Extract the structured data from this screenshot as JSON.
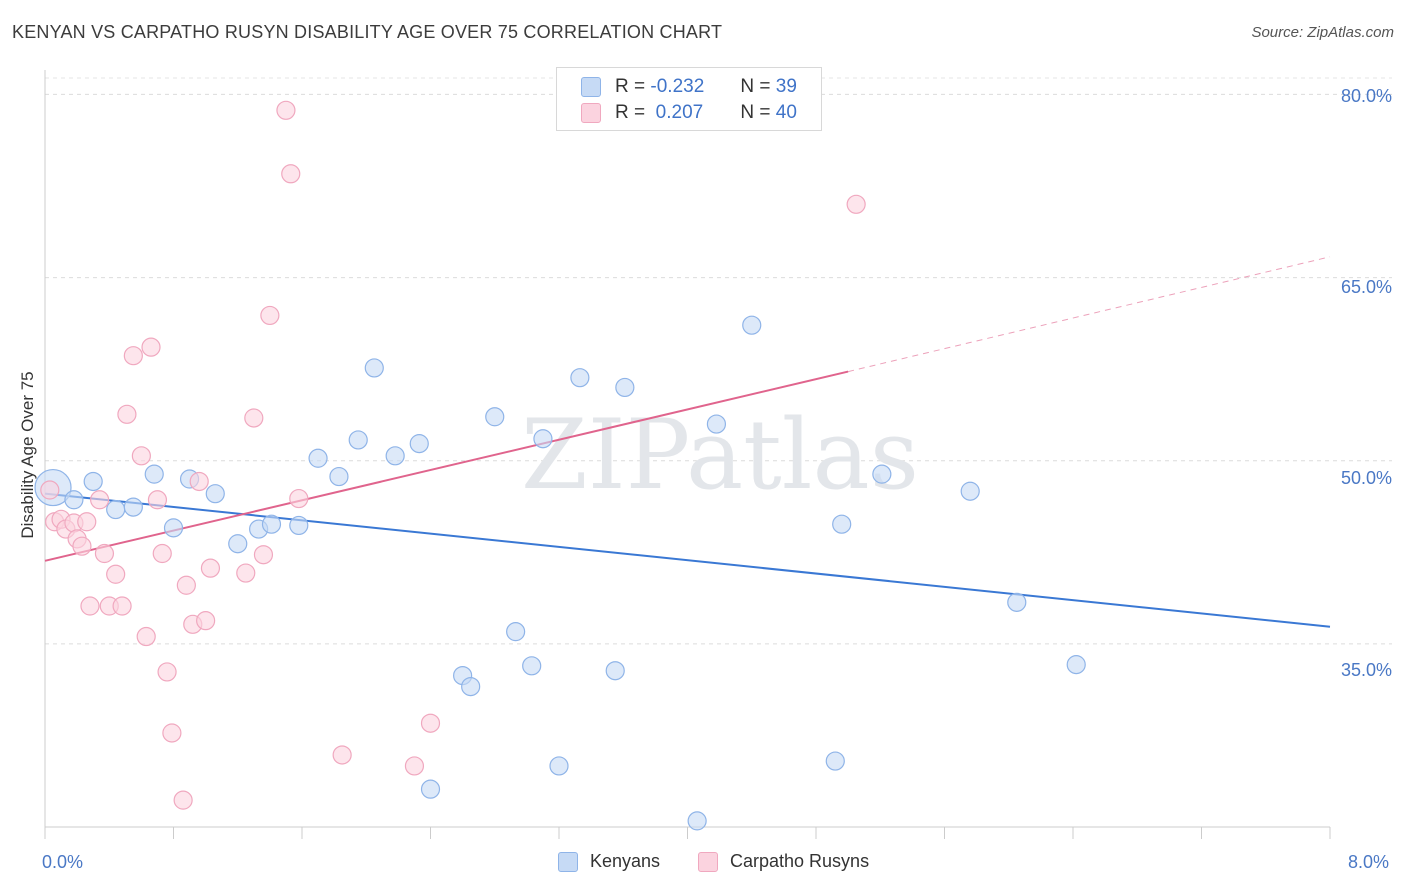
{
  "chart_data": {
    "type": "scatter",
    "title": "KENYAN VS CARPATHO RUSYN DISABILITY AGE OVER 75 CORRELATION CHART",
    "source": "Source: ZipAtlas.com",
    "xlabel": "",
    "ylabel": "Disability Age Over 75",
    "xlim": [
      0.0,
      8.0
    ],
    "ylim": [
      20.0,
      82.0
    ],
    "x_tick_labels": [
      "0.0%",
      "8.0%"
    ],
    "y_tick_values": [
      35.0,
      50.0,
      65.0,
      80.0
    ],
    "y_tick_labels": [
      "35.0%",
      "50.0%",
      "65.0%",
      "80.0%"
    ],
    "watermark": "ZIPatlas",
    "legend": {
      "rows": [
        {
          "r_label": "R =",
          "r_value": "-0.232",
          "n_label": "N =",
          "n_value": "39"
        },
        {
          "r_label": "R =",
          "r_value": " 0.207",
          "n_label": "N =",
          "n_value": "40"
        }
      ]
    },
    "series": [
      {
        "name": "Kenyans",
        "color": "#8fb4e8",
        "fill": "#c6daf5",
        "line_color": "#3a78d4",
        "trend": {
          "x0": 0.0,
          "y0": 47.3,
          "x1": 8.0,
          "y1": 36.4
        },
        "points": [
          [
            0.05,
            47.8,
            18
          ],
          [
            0.18,
            46.8,
            9
          ],
          [
            0.3,
            48.3,
            9
          ],
          [
            0.44,
            46.0,
            9
          ],
          [
            0.55,
            46.2,
            9
          ],
          [
            0.68,
            48.9,
            9
          ],
          [
            0.8,
            44.5,
            9
          ],
          [
            0.9,
            48.5,
            9
          ],
          [
            1.06,
            47.3,
            9
          ],
          [
            1.2,
            43.2,
            9
          ],
          [
            1.33,
            44.4,
            9
          ],
          [
            1.41,
            44.8,
            9
          ],
          [
            1.58,
            44.7,
            9
          ],
          [
            1.7,
            50.2,
            9
          ],
          [
            1.83,
            48.7,
            9
          ],
          [
            1.95,
            51.7,
            9
          ],
          [
            2.05,
            57.6,
            9
          ],
          [
            2.18,
            50.4,
            9
          ],
          [
            2.33,
            51.4,
            9
          ],
          [
            2.4,
            23.1,
            9
          ],
          [
            2.6,
            32.4,
            9
          ],
          [
            2.65,
            31.5,
            9
          ],
          [
            2.8,
            53.6,
            9
          ],
          [
            2.93,
            36.0,
            9
          ],
          [
            3.03,
            33.2,
            9
          ],
          [
            3.1,
            51.8,
            9
          ],
          [
            3.2,
            25.0,
            9
          ],
          [
            3.33,
            56.8,
            9
          ],
          [
            3.55,
            32.8,
            9
          ],
          [
            3.61,
            56.0,
            9
          ],
          [
            4.06,
            20.5,
            9
          ],
          [
            4.18,
            53.0,
            9
          ],
          [
            4.4,
            61.1,
            9
          ],
          [
            4.92,
            25.4,
            9
          ],
          [
            4.96,
            44.8,
            9
          ],
          [
            5.21,
            48.9,
            9
          ],
          [
            5.76,
            47.5,
            9
          ],
          [
            6.05,
            38.4,
            9
          ],
          [
            6.42,
            33.3,
            9
          ]
        ]
      },
      {
        "name": "Carpatho Rusyns",
        "color": "#f0a8bf",
        "fill": "#fbd3df",
        "line_color": "#e0648d",
        "trend": {
          "x0": 0.0,
          "y0": 41.8,
          "x1": 5.0,
          "y1": 57.3
        },
        "trend_ext": {
          "x0": 5.0,
          "y0": 57.3,
          "x1": 8.0,
          "y1": 66.7
        },
        "points": [
          [
            0.03,
            47.6,
            9
          ],
          [
            0.06,
            45.0,
            9
          ],
          [
            0.1,
            45.2,
            9
          ],
          [
            0.13,
            44.4,
            9
          ],
          [
            0.18,
            44.9,
            9
          ],
          [
            0.2,
            43.6,
            9
          ],
          [
            0.23,
            43.0,
            9
          ],
          [
            0.26,
            45.0,
            9
          ],
          [
            0.28,
            38.1,
            9
          ],
          [
            0.34,
            46.8,
            9
          ],
          [
            0.37,
            42.4,
            9
          ],
          [
            0.4,
            38.1,
            9
          ],
          [
            0.44,
            40.7,
            9
          ],
          [
            0.48,
            38.1,
            9
          ],
          [
            0.51,
            53.8,
            9
          ],
          [
            0.55,
            58.6,
            9
          ],
          [
            0.6,
            50.4,
            9
          ],
          [
            0.63,
            35.6,
            9
          ],
          [
            0.66,
            59.3,
            9
          ],
          [
            0.7,
            46.8,
            9
          ],
          [
            0.73,
            42.4,
            9
          ],
          [
            0.76,
            32.7,
            9
          ],
          [
            0.79,
            27.7,
            9
          ],
          [
            0.86,
            22.2,
            9
          ],
          [
            0.88,
            39.8,
            9
          ],
          [
            0.92,
            36.6,
            9
          ],
          [
            0.96,
            48.3,
            9
          ],
          [
            1.0,
            36.9,
            9
          ],
          [
            1.03,
            41.2,
            9
          ],
          [
            1.25,
            40.8,
            9
          ],
          [
            1.3,
            53.5,
            9
          ],
          [
            1.36,
            42.3,
            9
          ],
          [
            1.4,
            61.9,
            9
          ],
          [
            1.5,
            78.7,
            9
          ],
          [
            1.53,
            73.5,
            9
          ],
          [
            1.58,
            46.9,
            9
          ],
          [
            1.85,
            25.9,
            9
          ],
          [
            2.3,
            25.0,
            9
          ],
          [
            2.4,
            28.5,
            9
          ],
          [
            5.05,
            71.0,
            9
          ]
        ]
      }
    ]
  },
  "bottom_legend": {
    "kenyans": "Kenyans",
    "carpatho": "Carpatho Rusyns"
  }
}
